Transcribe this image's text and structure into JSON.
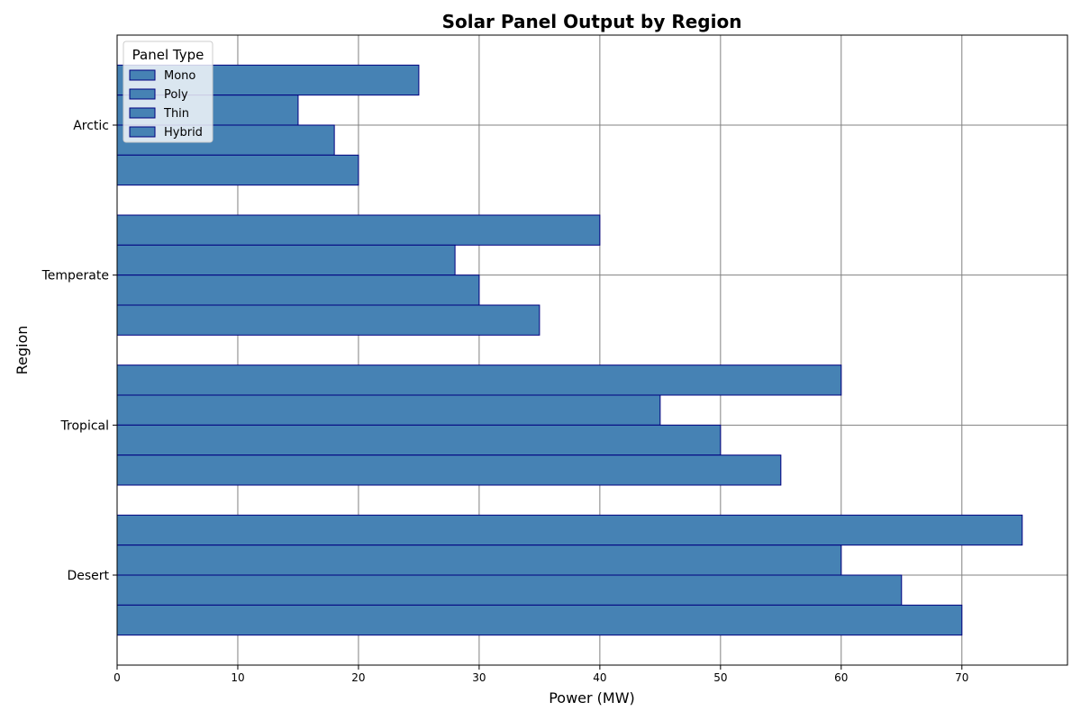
{
  "chart_data": {
    "type": "bar",
    "orientation": "horizontal",
    "title": "Solar Panel Output by Region",
    "xlabel": "Power (MW)",
    "ylabel": "Region",
    "categories": [
      "Desert",
      "Tropical",
      "Temperate",
      "Arctic"
    ],
    "series": [
      {
        "name": "Mono",
        "values": [
          75,
          60,
          40,
          25
        ]
      },
      {
        "name": "Poly",
        "values": [
          60,
          45,
          28,
          15
        ]
      },
      {
        "name": "Thin",
        "values": [
          65,
          50,
          30,
          18
        ]
      },
      {
        "name": "Hybrid",
        "values": [
          70,
          55,
          35,
          20
        ]
      }
    ],
    "xlim": [
      0,
      78.75
    ],
    "xticks": [
      0,
      10,
      20,
      30,
      40,
      50,
      60,
      70
    ],
    "grid": true,
    "legend": {
      "title": "Panel Type",
      "placement": "top-left"
    },
    "colors": {
      "bar_fill": "#4682b4",
      "bar_edge": "#000080",
      "grid": "#808080"
    }
  }
}
